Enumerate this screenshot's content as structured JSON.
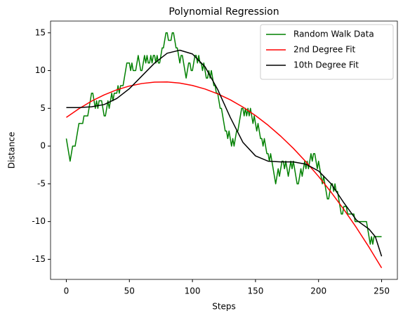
{
  "chart_data": {
    "type": "line",
    "title": "Polynomial Regression",
    "xlabel": "Steps",
    "ylabel": "Distance",
    "xlim": [
      -12.5,
      262.5
    ],
    "ylim": [
      -17.66,
      16.56
    ],
    "xticks": [
      0,
      50,
      100,
      150,
      200,
      250
    ],
    "yticks": [
      -15,
      -10,
      -5,
      0,
      5,
      10,
      15
    ],
    "legend": "upper right",
    "series": [
      {
        "name": "Random Walk Data",
        "color": "#008000",
        "x": [
          0,
          1,
          2,
          3,
          4,
          5,
          6,
          7,
          8,
          9,
          10,
          11,
          12,
          13,
          14,
          15,
          16,
          17,
          18,
          19,
          20,
          21,
          22,
          23,
          24,
          25,
          26,
          27,
          28,
          29,
          30,
          31,
          32,
          33,
          34,
          35,
          36,
          37,
          38,
          39,
          40,
          41,
          42,
          43,
          44,
          45,
          46,
          47,
          48,
          49,
          50,
          51,
          52,
          53,
          54,
          55,
          56,
          57,
          58,
          59,
          60,
          61,
          62,
          63,
          64,
          65,
          66,
          67,
          68,
          69,
          70,
          71,
          72,
          73,
          74,
          75,
          76,
          77,
          78,
          79,
          80,
          81,
          82,
          83,
          84,
          85,
          86,
          87,
          88,
          89,
          90,
          91,
          92,
          93,
          94,
          95,
          96,
          97,
          98,
          99,
          100,
          101,
          102,
          103,
          104,
          105,
          106,
          107,
          108,
          109,
          110,
          111,
          112,
          113,
          114,
          115,
          116,
          117,
          118,
          119,
          120,
          121,
          122,
          123,
          124,
          125,
          126,
          127,
          128,
          129,
          130,
          131,
          132,
          133,
          134,
          135,
          136,
          137,
          138,
          139,
          140,
          141,
          142,
          143,
          144,
          145,
          146,
          147,
          148,
          149,
          150,
          151,
          152,
          153,
          154,
          155,
          156,
          157,
          158,
          159,
          160,
          161,
          162,
          163,
          164,
          165,
          166,
          167,
          168,
          169,
          170,
          171,
          172,
          173,
          174,
          175,
          176,
          177,
          178,
          179,
          180,
          181,
          182,
          183,
          184,
          185,
          186,
          187,
          188,
          189,
          190,
          191,
          192,
          193,
          194,
          195,
          196,
          197,
          198,
          199,
          200,
          201,
          202,
          203,
          204,
          205,
          206,
          207,
          208,
          209,
          210,
          211,
          212,
          213,
          214,
          215,
          216,
          217,
          218,
          219,
          220,
          221,
          222,
          223,
          224,
          225,
          226,
          227,
          228,
          229,
          230,
          231,
          232,
          233,
          234,
          235,
          236,
          237,
          238,
          239,
          240,
          241,
          242,
          243,
          244,
          245,
          246,
          247,
          248,
          249,
          250
        ],
        "values": [
          1,
          0,
          -1,
          -2,
          -1,
          0,
          0,
          0,
          1,
          2,
          3,
          3,
          3,
          3,
          4,
          4,
          4,
          4,
          5,
          6,
          7,
          7,
          6,
          5,
          6,
          5,
          6,
          6,
          6,
          5,
          4,
          4,
          5,
          6,
          5,
          6,
          7,
          6,
          7,
          7,
          7,
          8,
          7,
          8,
          8,
          8,
          9,
          10,
          11,
          11,
          11,
          10,
          11,
          10,
          10,
          10,
          11,
          12,
          11,
          10,
          10,
          11,
          12,
          11,
          12,
          11,
          11,
          12,
          11,
          12,
          12,
          11,
          12,
          11,
          11,
          12,
          13,
          13,
          14,
          15,
          15,
          14,
          14,
          14,
          15,
          15,
          14,
          13,
          13,
          12,
          11,
          12,
          12,
          11,
          10,
          9,
          10,
          11,
          11,
          10,
          10,
          11,
          12,
          12,
          11,
          12,
          11,
          11,
          10,
          11,
          10,
          9,
          9,
          10,
          9,
          10,
          9,
          8,
          8,
          7,
          7,
          6,
          5,
          5,
          4,
          3,
          2,
          2,
          1,
          2,
          1,
          0,
          1,
          0,
          1,
          2,
          2,
          3,
          4,
          5,
          5,
          4,
          5,
          4,
          5,
          4,
          5,
          4,
          3,
          4,
          3,
          2,
          3,
          2,
          1,
          1,
          0,
          1,
          0,
          -1,
          -1,
          -2,
          -1,
          -2,
          -3,
          -4,
          -5,
          -4,
          -3,
          -4,
          -3,
          -2,
          -2,
          -3,
          -2,
          -3,
          -4,
          -3,
          -2,
          -3,
          -2,
          -3,
          -4,
          -5,
          -5,
          -4,
          -3,
          -4,
          -3,
          -2,
          -3,
          -2,
          -3,
          -2,
          -1,
          -2,
          -1,
          -1,
          -2,
          -3,
          -2,
          -3,
          -4,
          -5,
          -4,
          -5,
          -6,
          -7,
          -7,
          -6,
          -5,
          -5,
          -6,
          -5,
          -6,
          -6,
          -7,
          -8,
          -9,
          -9,
          -8,
          -8,
          -8,
          -9,
          -9,
          -9,
          -9,
          -9,
          -9,
          -10,
          -10,
          -10,
          -10,
          -10,
          -10,
          -10,
          -10,
          -10,
          -10,
          -11,
          -12,
          -13,
          -12,
          -13,
          -12,
          -12,
          -12,
          -12,
          -12,
          -12,
          -12
        ]
      },
      {
        "name": "2nd Degree Fit",
        "color": "#ff0000",
        "x": [
          0,
          10,
          20,
          30,
          40,
          50,
          60,
          70,
          80,
          90,
          100,
          110,
          120,
          130,
          140,
          150,
          160,
          170,
          180,
          190,
          200,
          210,
          220,
          230,
          240,
          250
        ],
        "values": [
          3.8,
          4.95,
          5.95,
          6.78,
          7.45,
          7.95,
          8.29,
          8.47,
          8.49,
          8.34,
          8.03,
          7.56,
          6.92,
          6.13,
          5.17,
          4.04,
          2.76,
          1.31,
          -0.3,
          -2.08,
          -4.02,
          -6.12,
          -8.38,
          -10.8,
          -13.39,
          -16.14
        ]
      },
      {
        "name": "10th Degree Fit",
        "color": "#000000",
        "x": [
          0,
          10,
          20,
          30,
          40,
          50,
          60,
          70,
          80,
          90,
          100,
          110,
          120,
          130,
          140,
          150,
          160,
          170,
          180,
          190,
          200,
          210,
          220,
          230,
          240,
          245,
          250
        ],
        "values": [
          5.1,
          5.1,
          5.2,
          5.5,
          6.3,
          7.6,
          9.3,
          11.0,
          12.3,
          12.7,
          12.2,
          10.5,
          7.5,
          3.8,
          0.5,
          -1.3,
          -2.0,
          -2.1,
          -2.1,
          -2.4,
          -3.3,
          -5.0,
          -7.5,
          -9.8,
          -11.0,
          -12.0,
          -14.6
        ]
      }
    ]
  }
}
